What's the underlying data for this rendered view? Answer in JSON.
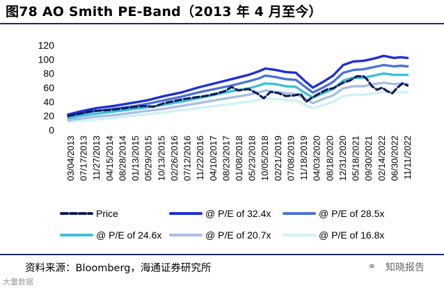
{
  "header": {
    "title": "图78 AO Smith PE-Band（2013 年 4 月至今）"
  },
  "footer": {
    "source": "资料来源：Bloomberg，海通证券研究所",
    "watermark_right": "知晓报告",
    "watermark_left": "大量数据",
    "watermark_icon": "wechat-icon"
  },
  "colors": {
    "rule": "#1a2a6c",
    "price": "#0d1b5c",
    "pe_32_4": "#1f2ed6",
    "pe_28_5": "#4a72d9",
    "pe_24_6": "#3cc0d8",
    "pe_20_7": "#a9bde6",
    "pe_16_8": "#cdf2f7"
  },
  "chart_data": {
    "type": "line",
    "title": "AO Smith PE-Band",
    "xlabel": "",
    "ylabel": "",
    "ylim": [
      0,
      120
    ],
    "yticks": [
      0,
      20,
      40,
      60,
      80,
      100,
      120
    ],
    "x_tick_labels": [
      "03/04/2013",
      "07/17/2013",
      "11/27/2013",
      "04/15/2014",
      "08/28/2014",
      "01/13/2015",
      "05/29/2015",
      "10/13/2015",
      "02/26/2016",
      "07/12/2016",
      "11/22/2016",
      "04/10/2017",
      "08/23/2017",
      "01/08/2018",
      "05/23/2018",
      "10/05/2018",
      "02/21/2019",
      "07/08/2019",
      "11/18/2019",
      "04/03/2020",
      "08/18/2020",
      "12/31/2020",
      "05/18/2021",
      "09/30/2021",
      "02/14/2022",
      "06/30/2022",
      "11/11/2022"
    ],
    "x_range": [
      "2013-03-04",
      "2023-03-31"
    ],
    "series": [
      {
        "name": "Price",
        "style": "dashed",
        "points": [
          [
            2013.17,
            20
          ],
          [
            2013.5,
            23
          ],
          [
            2013.9,
            27
          ],
          [
            2014.3,
            28
          ],
          [
            2014.7,
            30
          ],
          [
            2015.0,
            32
          ],
          [
            2015.4,
            34
          ],
          [
            2015.7,
            33
          ],
          [
            2016.0,
            38
          ],
          [
            2016.3,
            41
          ],
          [
            2016.6,
            44
          ],
          [
            2016.9,
            46
          ],
          [
            2017.2,
            48
          ],
          [
            2017.5,
            51
          ],
          [
            2017.8,
            55
          ],
          [
            2018.0,
            61
          ],
          [
            2018.2,
            56
          ],
          [
            2018.5,
            58
          ],
          [
            2018.75,
            52
          ],
          [
            2018.95,
            45
          ],
          [
            2019.15,
            54
          ],
          [
            2019.4,
            52
          ],
          [
            2019.6,
            48
          ],
          [
            2019.85,
            49
          ],
          [
            2020.05,
            51
          ],
          [
            2020.2,
            40
          ],
          [
            2020.35,
            45
          ],
          [
            2020.6,
            52
          ],
          [
            2020.85,
            58
          ],
          [
            2021.0,
            59
          ],
          [
            2021.3,
            67
          ],
          [
            2021.5,
            70
          ],
          [
            2021.7,
            76
          ],
          [
            2021.9,
            76
          ],
          [
            2022.0,
            72
          ],
          [
            2022.15,
            62
          ],
          [
            2022.3,
            57
          ],
          [
            2022.45,
            60
          ],
          [
            2022.6,
            55
          ],
          [
            2022.75,
            52
          ],
          [
            2022.9,
            60
          ],
          [
            2023.05,
            66
          ],
          [
            2023.2,
            63
          ]
        ]
      },
      {
        "name": "@ P/E of 32.4x",
        "style": "solid",
        "points": [
          [
            2013.17,
            22
          ],
          [
            2013.5,
            26
          ],
          [
            2014.0,
            31
          ],
          [
            2014.5,
            34
          ],
          [
            2015.0,
            38
          ],
          [
            2015.5,
            42
          ],
          [
            2016.0,
            48
          ],
          [
            2016.5,
            53
          ],
          [
            2017.0,
            60
          ],
          [
            2017.5,
            66
          ],
          [
            2018.0,
            72
          ],
          [
            2018.5,
            78
          ],
          [
            2018.8,
            83
          ],
          [
            2019.0,
            87
          ],
          [
            2019.3,
            85
          ],
          [
            2019.6,
            82
          ],
          [
            2019.9,
            81
          ],
          [
            2020.15,
            70
          ],
          [
            2020.4,
            60
          ],
          [
            2020.7,
            68
          ],
          [
            2021.0,
            77
          ],
          [
            2021.3,
            92
          ],
          [
            2021.6,
            97
          ],
          [
            2021.9,
            98
          ],
          [
            2022.2,
            101
          ],
          [
            2022.5,
            105
          ],
          [
            2022.8,
            102
          ],
          [
            2023.0,
            103
          ],
          [
            2023.2,
            102
          ]
        ]
      },
      {
        "name": "@ P/E of 28.5x",
        "style": "solid",
        "points": [
          [
            2013.17,
            20
          ],
          [
            2013.5,
            23
          ],
          [
            2014.0,
            27
          ],
          [
            2014.5,
            30
          ],
          [
            2015.0,
            33
          ],
          [
            2015.5,
            37
          ],
          [
            2016.0,
            42
          ],
          [
            2016.5,
            47
          ],
          [
            2017.0,
            53
          ],
          [
            2017.5,
            58
          ],
          [
            2018.0,
            63
          ],
          [
            2018.5,
            69
          ],
          [
            2018.8,
            73
          ],
          [
            2019.0,
            77
          ],
          [
            2019.3,
            75
          ],
          [
            2019.6,
            72
          ],
          [
            2019.9,
            71
          ],
          [
            2020.15,
            62
          ],
          [
            2020.4,
            53
          ],
          [
            2020.7,
            60
          ],
          [
            2021.0,
            68
          ],
          [
            2021.3,
            81
          ],
          [
            2021.6,
            85
          ],
          [
            2021.9,
            86
          ],
          [
            2022.2,
            89
          ],
          [
            2022.5,
            92
          ],
          [
            2022.8,
            90
          ],
          [
            2023.0,
            91
          ],
          [
            2023.2,
            90
          ]
        ]
      },
      {
        "name": "@ P/E of 24.6x",
        "style": "solid",
        "points": [
          [
            2013.17,
            17
          ],
          [
            2013.5,
            20
          ],
          [
            2014.0,
            23
          ],
          [
            2014.5,
            26
          ],
          [
            2015.0,
            29
          ],
          [
            2015.5,
            32
          ],
          [
            2016.0,
            36
          ],
          [
            2016.5,
            40
          ],
          [
            2017.0,
            45
          ],
          [
            2017.5,
            50
          ],
          [
            2018.0,
            55
          ],
          [
            2018.5,
            59
          ],
          [
            2018.8,
            63
          ],
          [
            2019.0,
            66
          ],
          [
            2019.3,
            65
          ],
          [
            2019.6,
            62
          ],
          [
            2019.9,
            61
          ],
          [
            2020.15,
            53
          ],
          [
            2020.4,
            46
          ],
          [
            2020.7,
            52
          ],
          [
            2021.0,
            58
          ],
          [
            2021.3,
            70
          ],
          [
            2021.6,
            74
          ],
          [
            2021.9,
            74
          ],
          [
            2022.2,
            77
          ],
          [
            2022.5,
            80
          ],
          [
            2022.8,
            78
          ],
          [
            2023.0,
            78
          ],
          [
            2023.2,
            78
          ]
        ]
      },
      {
        "name": "@ P/E of 20.7x",
        "style": "solid",
        "points": [
          [
            2013.17,
            14
          ],
          [
            2013.5,
            16
          ],
          [
            2014.0,
            19
          ],
          [
            2014.5,
            21
          ],
          [
            2015.0,
            24
          ],
          [
            2015.5,
            27
          ],
          [
            2016.0,
            30
          ],
          [
            2016.5,
            34
          ],
          [
            2017.0,
            38
          ],
          [
            2017.5,
            42
          ],
          [
            2018.0,
            46
          ],
          [
            2018.5,
            50
          ],
          [
            2018.8,
            53
          ],
          [
            2019.0,
            56
          ],
          [
            2019.3,
            54
          ],
          [
            2019.6,
            52
          ],
          [
            2019.9,
            51
          ],
          [
            2020.15,
            45
          ],
          [
            2020.4,
            38
          ],
          [
            2020.7,
            44
          ],
          [
            2021.0,
            49
          ],
          [
            2021.3,
            59
          ],
          [
            2021.6,
            62
          ],
          [
            2021.9,
            62
          ],
          [
            2022.2,
            65
          ],
          [
            2022.5,
            67
          ],
          [
            2022.8,
            65
          ],
          [
            2023.0,
            66
          ],
          [
            2023.2,
            65
          ]
        ]
      },
      {
        "name": "@ P/E of 16.8x",
        "style": "solid",
        "points": [
          [
            2013.17,
            12
          ],
          [
            2013.5,
            13
          ],
          [
            2014.0,
            15
          ],
          [
            2014.5,
            17
          ],
          [
            2015.0,
            20
          ],
          [
            2015.5,
            22
          ],
          [
            2016.0,
            25
          ],
          [
            2016.5,
            28
          ],
          [
            2017.0,
            31
          ],
          [
            2017.5,
            34
          ],
          [
            2018.0,
            37
          ],
          [
            2018.5,
            40
          ],
          [
            2018.8,
            43
          ],
          [
            2019.0,
            45
          ],
          [
            2019.3,
            44
          ],
          [
            2019.6,
            42
          ],
          [
            2019.9,
            42
          ],
          [
            2020.15,
            36
          ],
          [
            2020.4,
            31
          ],
          [
            2020.7,
            35
          ],
          [
            2021.0,
            40
          ],
          [
            2021.3,
            48
          ],
          [
            2021.6,
            50
          ],
          [
            2021.9,
            50
          ],
          [
            2022.2,
            52
          ],
          [
            2022.5,
            54
          ],
          [
            2022.8,
            53
          ],
          [
            2023.0,
            54
          ],
          [
            2023.2,
            53
          ]
        ]
      }
    ]
  }
}
